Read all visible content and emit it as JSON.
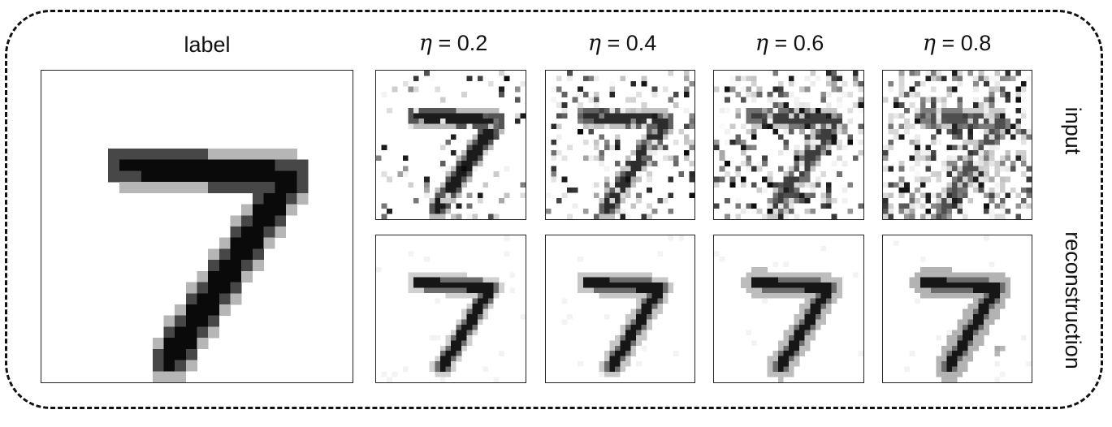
{
  "header": {
    "label_title": "label",
    "noise_prefix": "η",
    "noise_levels": [
      "= 0.2",
      "= 0.4",
      "= 0.6",
      "= 0.8"
    ]
  },
  "row_labels": {
    "input": "input",
    "reconstruction": "reconstruction"
  },
  "images": {
    "label": "digit-seven-clean",
    "inputs": [
      "digit-seven-noise-0.2",
      "digit-seven-noise-0.4",
      "digit-seven-noise-0.6",
      "digit-seven-noise-0.8"
    ],
    "reconstructions": [
      "digit-seven-recon-0.2",
      "digit-seven-recon-0.4",
      "digit-seven-recon-0.6",
      "digit-seven-recon-0.8"
    ]
  },
  "noise_values": [
    0.2,
    0.4,
    0.6,
    0.8
  ]
}
